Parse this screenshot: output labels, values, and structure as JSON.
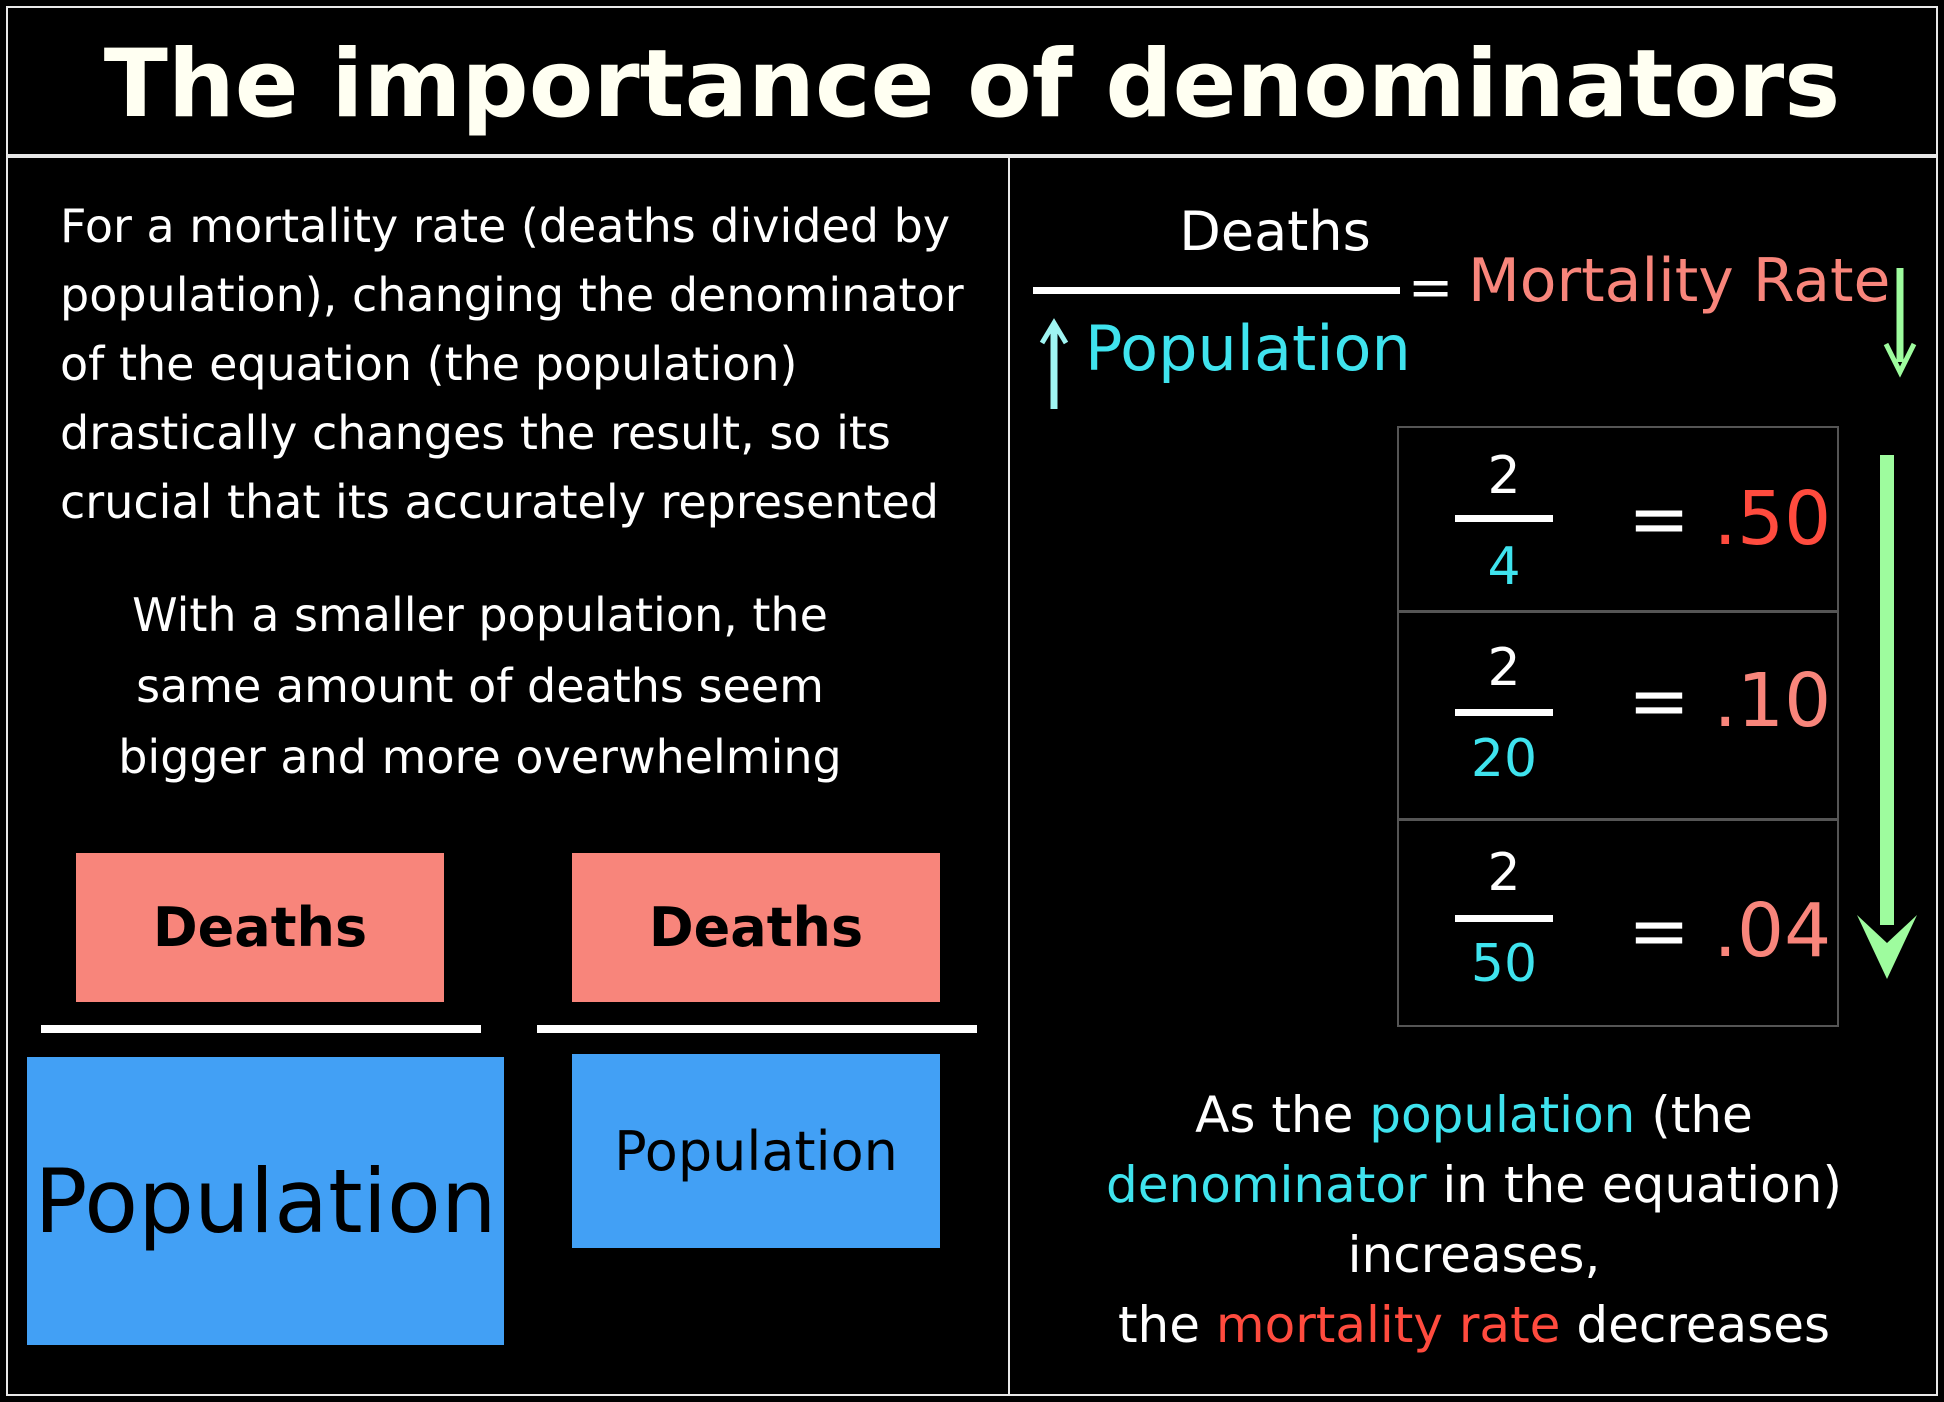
{
  "title": "The importance of denominators",
  "left": {
    "paragraph1": [
      "For a mortality rate (deaths divided by",
      "population), changing the denominator",
      "of the equation (the population)",
      "drastically changes the result, so its",
      "crucial that its accurately represented"
    ],
    "paragraph2": [
      "With a smaller population, the",
      "same amount of deaths seem",
      "bigger and more overwhelming"
    ],
    "fraction_large": {
      "numerator": "Deaths",
      "denominator": "Population"
    },
    "fraction_small": {
      "numerator": "Deaths",
      "denominator": "Population"
    }
  },
  "right": {
    "formula": {
      "numerator": "Deaths",
      "denominator": "Population",
      "equals": "=",
      "result": "Mortality Rate"
    },
    "examples": [
      {
        "numerator": "2",
        "denominator": "4",
        "equals": "= ",
        "value": ".50"
      },
      {
        "numerator": "2",
        "denominator": "20",
        "equals": "= ",
        "value": ".10"
      },
      {
        "numerator": "2",
        "denominator": "50",
        "equals": "= ",
        "value": ".04"
      }
    ],
    "conclusion": {
      "l1a": "As the ",
      "l1b": "population",
      "l1c": " (the",
      "l2a": "denominator",
      "l2b": " in the equation)",
      "l3": "increases,",
      "l4a": "the ",
      "l4b": "mortality rate",
      "l4c": " decreases"
    }
  },
  "colors": {
    "deaths_box": "#f8857b",
    "population_box": "#42a0f5",
    "cyan": "#3fe3ee",
    "salmon": "#f8857b",
    "red": "#ff4b3e",
    "green_arrow": "#9efc9e"
  }
}
